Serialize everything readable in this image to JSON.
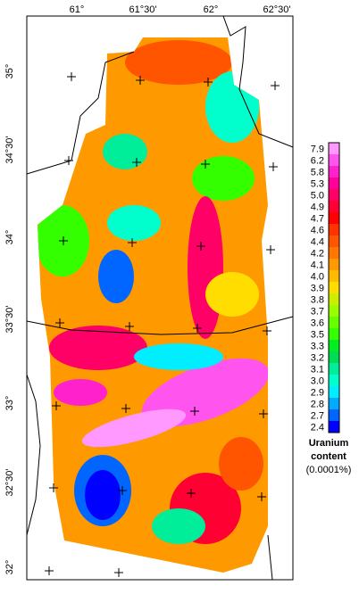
{
  "map": {
    "longitude_labels": [
      "61°",
      "61°30'",
      "62°",
      "62°30'"
    ],
    "latitude_labels": [
      "35°",
      "34°30'",
      "34°",
      "33°30'",
      "33°",
      "32°30'",
      "32°"
    ],
    "legend": {
      "title": [
        "Uranium",
        "content",
        "(0.0001%)"
      ],
      "entries": [
        {
          "label": "7.9",
          "color": "#ff99ff"
        },
        {
          "label": "6.2",
          "color": "#ff55ee"
        },
        {
          "label": "5.8",
          "color": "#ff22cc"
        },
        {
          "label": "5.3",
          "color": "#ff0099"
        },
        {
          "label": "5.0",
          "color": "#ff0066"
        },
        {
          "label": "4.9",
          "color": "#ff0033"
        },
        {
          "label": "4.7",
          "color": "#ff0000"
        },
        {
          "label": "4.6",
          "color": "#ff3300"
        },
        {
          "label": "4.4",
          "color": "#ff5500"
        },
        {
          "label": "4.2",
          "color": "#ff7700"
        },
        {
          "label": "4.1",
          "color": "#ff9900"
        },
        {
          "label": "4.0",
          "color": "#ffbb00"
        },
        {
          "label": "3.9",
          "color": "#ffdd00"
        },
        {
          "label": "3.8",
          "color": "#ccee00"
        },
        {
          "label": "3.7",
          "color": "#99ff00"
        },
        {
          "label": "3.6",
          "color": "#66ff00"
        },
        {
          "label": "3.5",
          "color": "#33ff00"
        },
        {
          "label": "3.3",
          "color": "#00ee22"
        },
        {
          "label": "3.2",
          "color": "#00dd55"
        },
        {
          "label": "3.1",
          "color": "#00ee99"
        },
        {
          "label": "3.0",
          "color": "#00ffcc"
        },
        {
          "label": "2.9",
          "color": "#00eeff"
        },
        {
          "label": "2.8",
          "color": "#00aaff"
        },
        {
          "label": "2.7",
          "color": "#0066ff"
        },
        {
          "label": "2.4",
          "color": "#0000ff"
        }
      ]
    }
  }
}
